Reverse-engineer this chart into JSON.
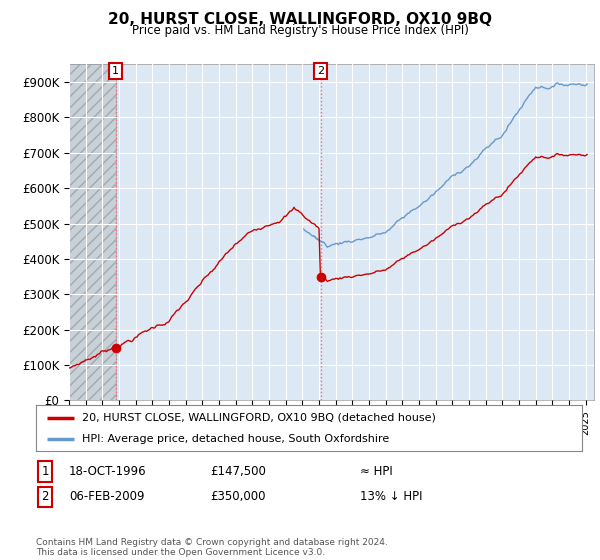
{
  "title": "20, HURST CLOSE, WALLINGFORD, OX10 9BQ",
  "subtitle": "Price paid vs. HM Land Registry's House Price Index (HPI)",
  "ylim": [
    0,
    950000
  ],
  "yticks": [
    0,
    100000,
    200000,
    300000,
    400000,
    500000,
    600000,
    700000,
    800000,
    900000
  ],
  "ytick_labels": [
    "£0",
    "£100K",
    "£200K",
    "£300K",
    "£400K",
    "£500K",
    "£600K",
    "£700K",
    "£800K",
    "£900K"
  ],
  "bg_color": "#ffffff",
  "plot_bg_color": "#dce9f5",
  "hatch_color": "#b0b8c0",
  "grid_color": "#ffffff",
  "sale1_date": 1996.8,
  "sale1_price": 147500,
  "sale2_date": 2009.1,
  "sale2_price": 350000,
  "hpi_line_color": "#6699cc",
  "price_line_color": "#cc0000",
  "dashed_line_color": "#ff6666",
  "legend_label_price": "20, HURST CLOSE, WALLINGFORD, OX10 9BQ (detached house)",
  "legend_label_hpi": "HPI: Average price, detached house, South Oxfordshire",
  "table_row1": [
    "1",
    "18-OCT-1996",
    "£147,500",
    "≈ HPI"
  ],
  "table_row2": [
    "2",
    "06-FEB-2009",
    "£350,000",
    "13% ↓ HPI"
  ],
  "footer": "Contains HM Land Registry data © Crown copyright and database right 2024.\nThis data is licensed under the Open Government Licence v3.0.",
  "xmin": 1994,
  "xmax": 2025.5
}
